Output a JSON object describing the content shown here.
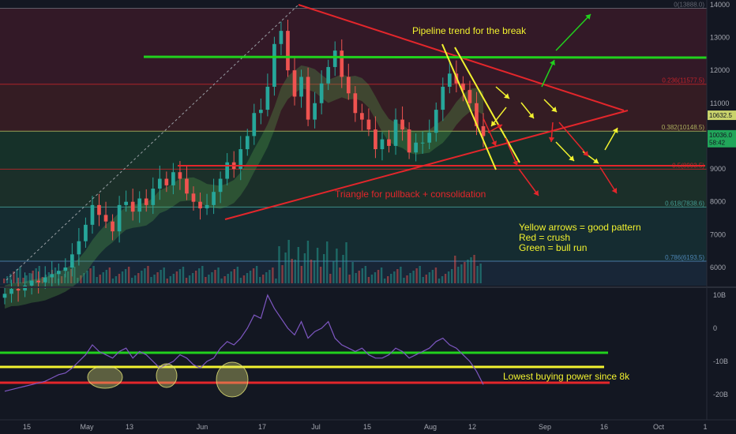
{
  "colors": {
    "background": "#131722",
    "axis_text": "#a3a6af",
    "green": "#21d11d",
    "red": "#e3262b",
    "yellow": "#f2f22f",
    "candle_up": "#26a69a",
    "candle_down": "#ef5350",
    "obv_line": "#7e57c2",
    "fib_line_price": "#c9d36b"
  },
  "chart_data": [
    {
      "type": "candlestick",
      "title": "",
      "x_ticks": [
        "15",
        "May",
        "13",
        "Jun",
        "17",
        "Jul",
        "15",
        "Aug",
        "12",
        "Sep",
        "16",
        "Oct",
        "1"
      ],
      "y_ticks": [
        6000,
        7000,
        8000,
        9000,
        10000,
        11000,
        12000,
        13000,
        14000
      ],
      "ylim": [
        5500,
        14100
      ],
      "fib_levels": [
        {
          "label": "0(13888.0)",
          "price": 13888
        },
        {
          "label": "0.236(11577.5)",
          "price": 11577.5
        },
        {
          "label": "0.382(10148.5)",
          "price": 10148.5
        },
        {
          "label": "0.5(8993.5)",
          "price": 8993.5
        },
        {
          "label": "0.618(7838.6)",
          "price": 7838.6
        },
        {
          "label": "0.786(6193.5)",
          "price": 6193.5
        }
      ],
      "price_badges": [
        {
          "label": "10632.5",
          "price": 10632.5
        },
        {
          "label": "10036.0",
          "price": 10036
        },
        {
          "label": "58:42",
          "price": 9800
        }
      ],
      "closes": [
        5200,
        5350,
        5300,
        5450,
        5600,
        5550,
        5700,
        5800,
        5900,
        6000,
        6400,
        6800,
        7300,
        7900,
        7600,
        7400,
        7100,
        7900,
        8000,
        7700,
        8100,
        7900,
        8400,
        8700,
        8500,
        8900,
        8700,
        8250,
        8000,
        7800,
        7900,
        8300,
        8700,
        9200,
        9000,
        9600,
        10000,
        10700,
        10800,
        11500,
        12800,
        13200,
        12000,
        11200,
        11800,
        10500,
        11000,
        11600,
        12100,
        12600,
        11800,
        11300,
        10700,
        10500,
        10200,
        9600,
        9900,
        9700,
        10500,
        10200,
        9500,
        9800,
        9800,
        10100,
        10800,
        11500,
        11900,
        11600,
        11400,
        11000,
        10300,
        10000
      ],
      "annotations": [
        {
          "text": "Pipeline trend for the break",
          "color": "yellow"
        },
        {
          "text": "Triangle for pullback + consolidation",
          "color": "red"
        },
        {
          "text": "Yellow arrows = good pattern",
          "color": "yellow"
        },
        {
          "text": "Red = crush",
          "color": "yellow"
        },
        {
          "text": "Green = bull run",
          "color": "yellow"
        }
      ]
    },
    {
      "type": "line",
      "title": "",
      "y_ticks": [
        "10B",
        "0",
        "-10B",
        "-20B"
      ],
      "y_tick_values": [
        10,
        0,
        -10,
        -20
      ],
      "ylim": [
        -24,
        12
      ],
      "values": [
        -19,
        -18.5,
        -18,
        -17.5,
        -17,
        -16.5,
        -16,
        -15,
        -14,
        -13.5,
        -12,
        -10,
        -8,
        -5,
        -7,
        -8,
        -9,
        -7,
        -6,
        -9,
        -7,
        -8,
        -10,
        -12,
        -11,
        -10,
        -8,
        -9,
        -11,
        -12,
        -10,
        -9,
        -6,
        -4,
        -5,
        -3,
        0,
        4,
        3,
        10,
        6,
        3,
        0,
        -2,
        2,
        -3,
        -1,
        0,
        2,
        -3,
        -5,
        -6,
        -7,
        -6,
        -8,
        -9,
        -9,
        -8,
        -6,
        -7,
        -9,
        -8,
        -7,
        -6,
        -4,
        -3,
        -5,
        -6,
        -8,
        -10,
        -13,
        -17
      ],
      "annotation": "Lowest buying power since 8k"
    }
  ]
}
